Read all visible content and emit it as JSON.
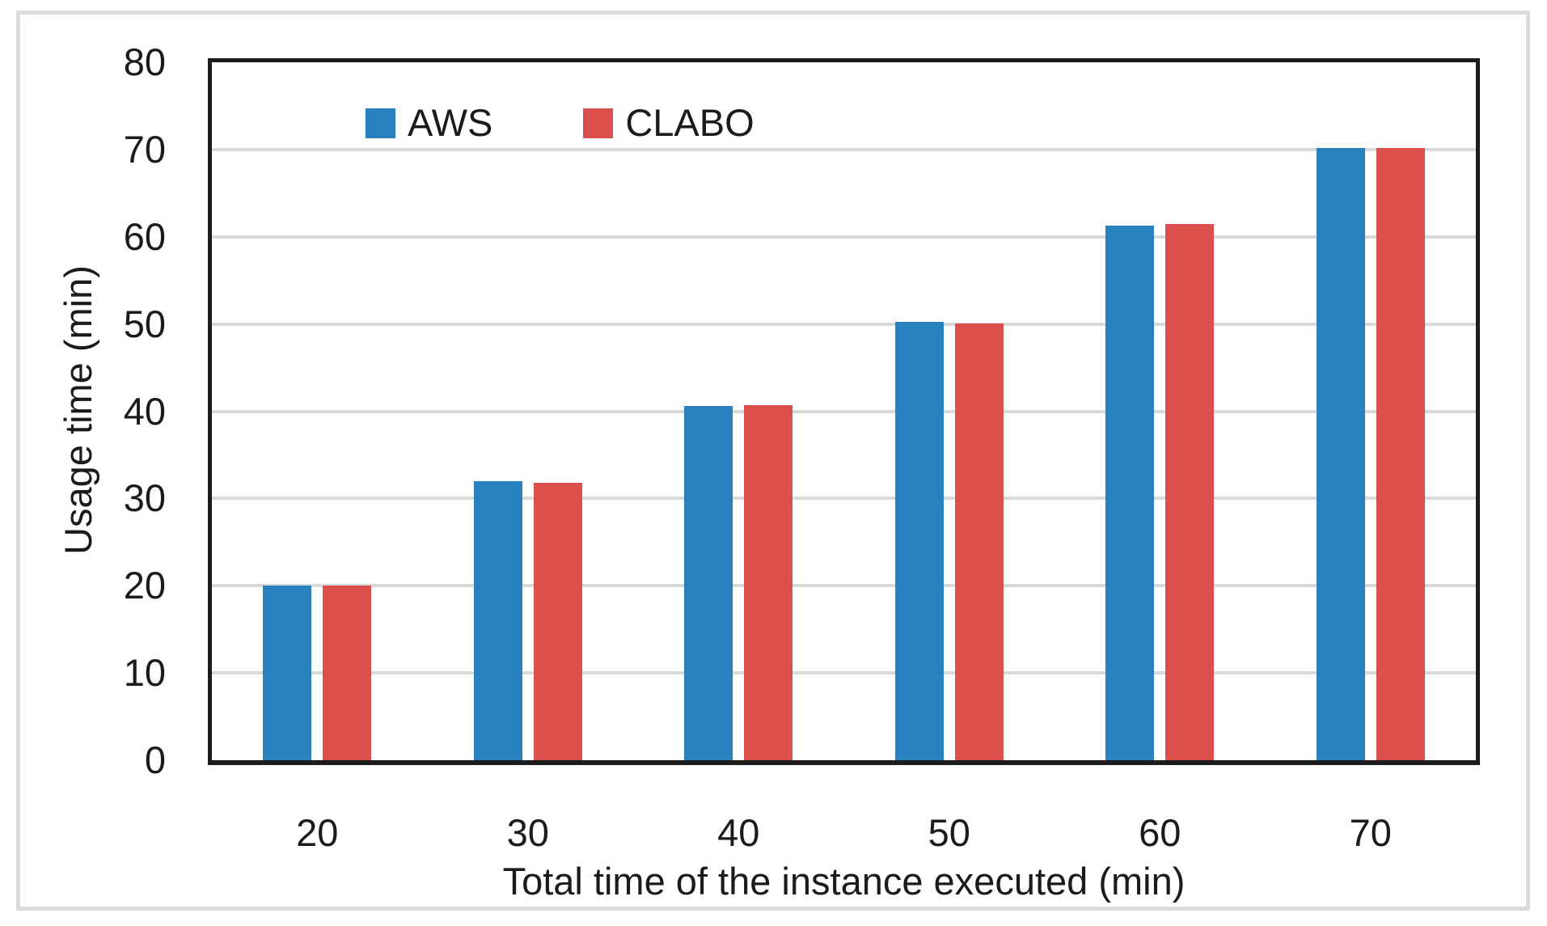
{
  "chart_data": {
    "type": "bar",
    "title": "",
    "categories": [
      "20",
      "30",
      "40",
      "50",
      "60",
      "70"
    ],
    "series": [
      {
        "name": "AWS",
        "color": "#2681BE",
        "values": [
          20.0,
          32.0,
          40.6,
          50.2,
          61.3,
          70.2
        ]
      },
      {
        "name": "CLABO",
        "color": "#DB504D",
        "values": [
          20.0,
          31.8,
          40.7,
          50.1,
          61.5,
          70.2
        ]
      }
    ],
    "xlabel": "Total time of the instance executed (min)",
    "ylabel": "Usage time (min)",
    "ylim": [
      0,
      80
    ],
    "ytick_step": 10,
    "grid": "horizontal",
    "legend_position": "top-inside-left",
    "gridline_color": "#D9D9D9",
    "axis_color": "#1C1C1C",
    "frame_color": "#DBDBDB",
    "text_color": "#1B1B1B"
  }
}
